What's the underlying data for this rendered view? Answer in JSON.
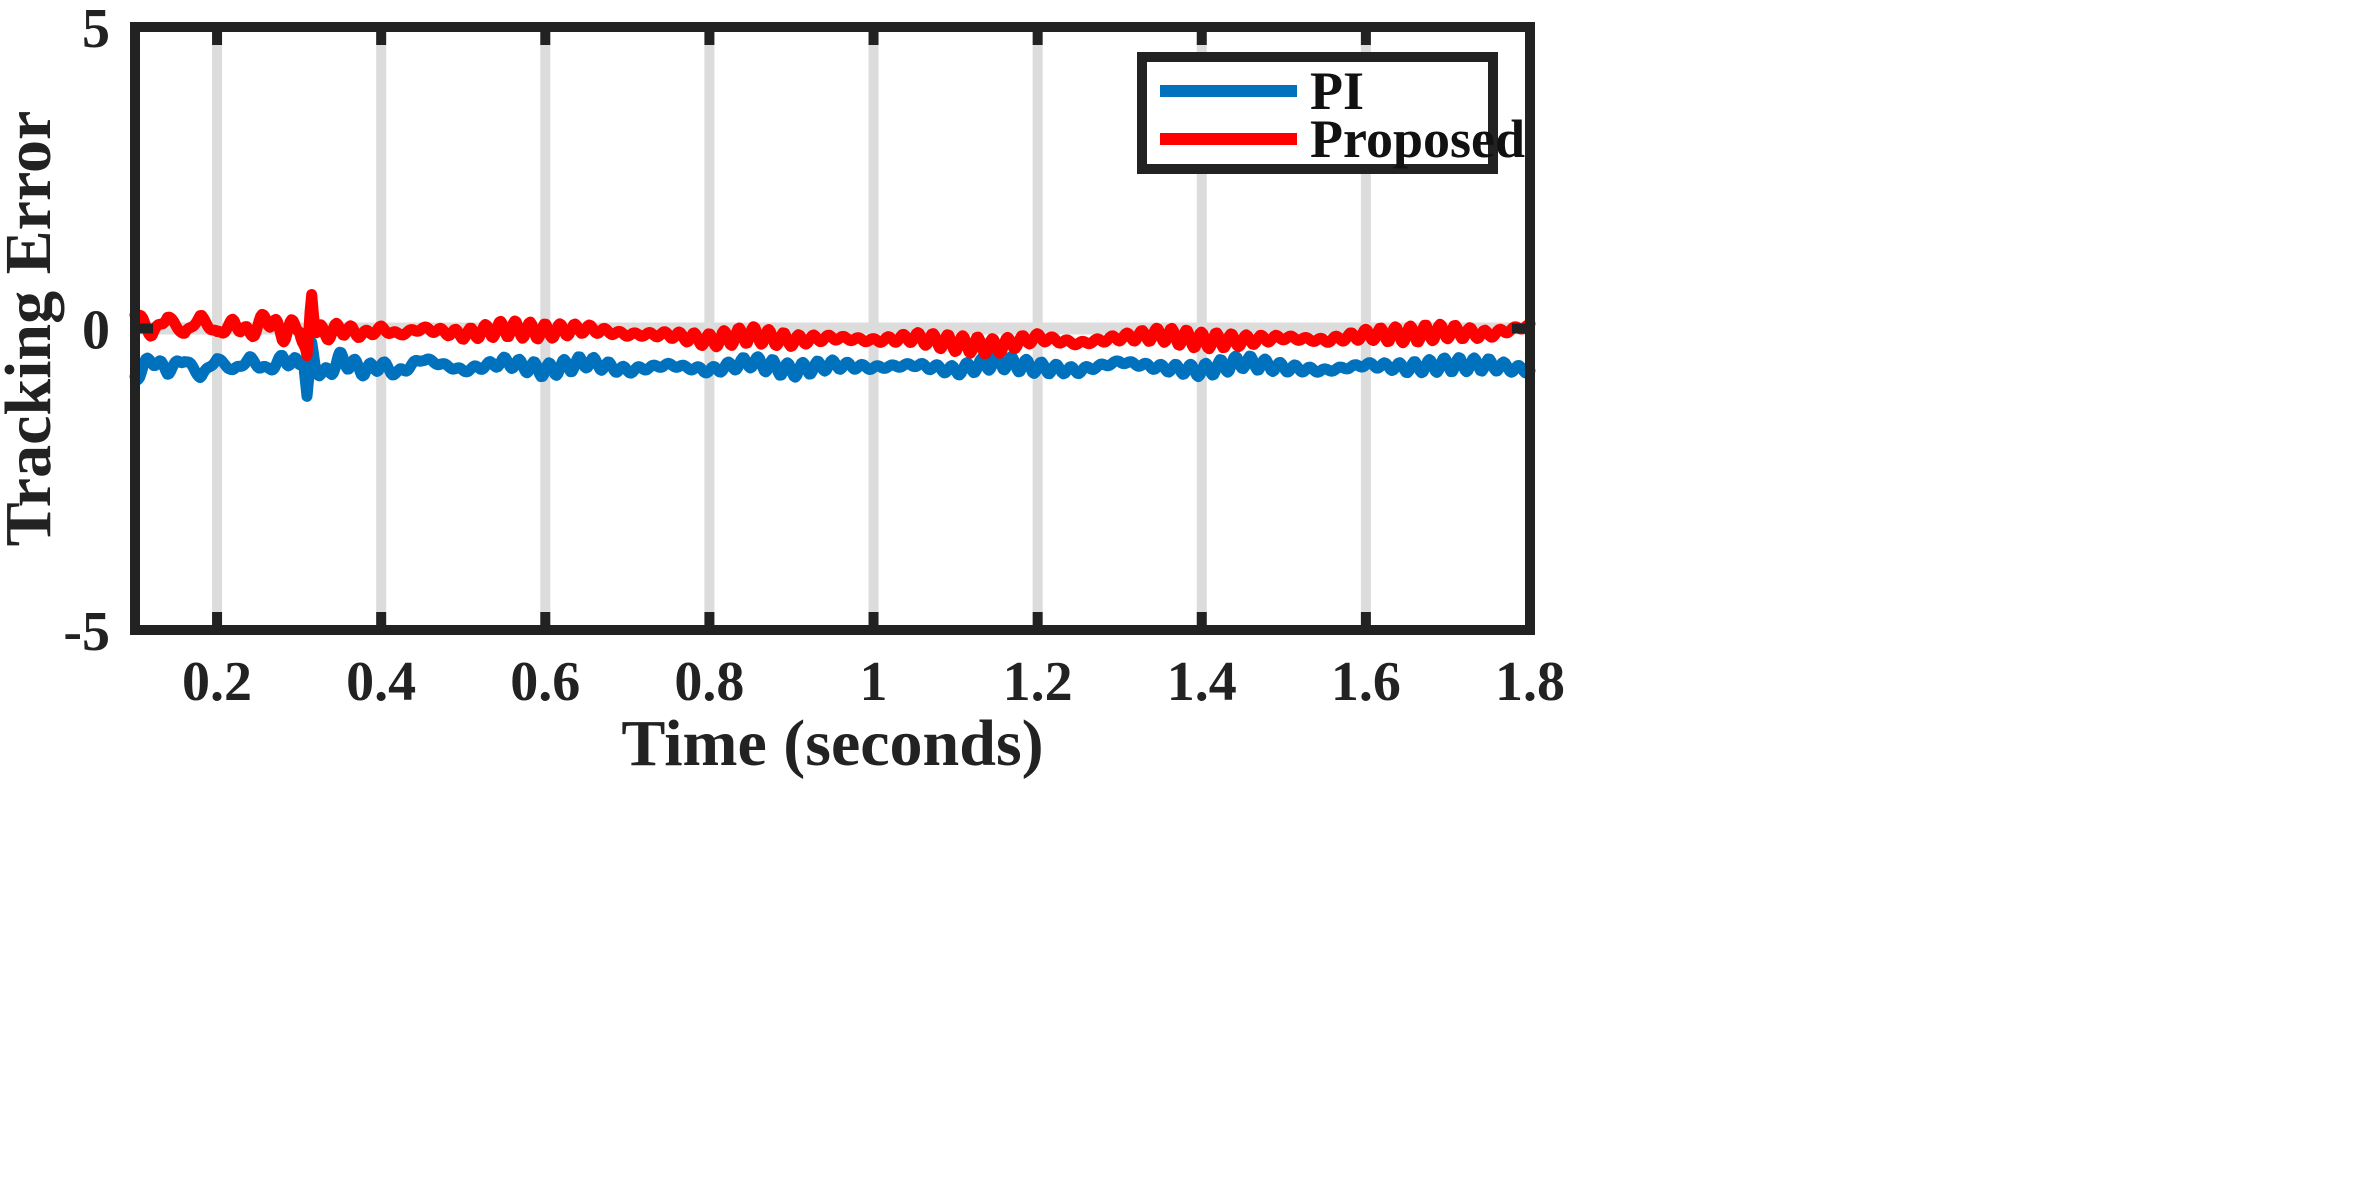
{
  "chart_data": {
    "type": "line",
    "title": "",
    "xlabel": "Time (seconds)",
    "ylabel": "Tracking Error",
    "xlim": [
      0.1,
      1.8
    ],
    "ylim": [
      -5,
      5
    ],
    "xticks": [
      0.2,
      0.4,
      0.6,
      0.8,
      1,
      1.2,
      1.4,
      1.6,
      1.8
    ],
    "xtick_labels": [
      "0.2",
      "0.4",
      "0.6",
      "0.8",
      "1",
      "1.2",
      "1.4",
      "1.6",
      "1.8"
    ],
    "yticks": [
      -5,
      0,
      5
    ],
    "ytick_labels": [
      "-5",
      "0",
      "5"
    ],
    "grid": "vertical",
    "legend_position": "top-right",
    "series": [
      {
        "name": "PI",
        "color": "#0072BD",
        "x": [
          0.1,
          0.12,
          0.14,
          0.16,
          0.18,
          0.2,
          0.22,
          0.24,
          0.26,
          0.28,
          0.3,
          0.305,
          0.31,
          0.315,
          0.32,
          0.33,
          0.35,
          0.38,
          0.4,
          0.42,
          0.45,
          0.5,
          0.55,
          0.6,
          0.65,
          0.7,
          0.75,
          0.8,
          0.85,
          0.9,
          0.95,
          1.0,
          1.05,
          1.1,
          1.15,
          1.2,
          1.25,
          1.3,
          1.35,
          1.4,
          1.45,
          1.5,
          1.55,
          1.6,
          1.65,
          1.7,
          1.75,
          1.8
        ],
        "values": [
          -0.8,
          -0.5,
          -0.7,
          -0.5,
          -0.8,
          -0.5,
          -0.7,
          -0.5,
          -0.7,
          -0.5,
          -0.6,
          -0.4,
          -1.2,
          -0.3,
          -0.6,
          -0.8,
          -0.5,
          -0.7,
          -0.6,
          -0.75,
          -0.5,
          -0.7,
          -0.55,
          -0.7,
          -0.55,
          -0.7,
          -0.6,
          -0.7,
          -0.55,
          -0.7,
          -0.6,
          -0.65,
          -0.6,
          -0.7,
          -0.55,
          -0.65,
          -0.7,
          -0.55,
          -0.65,
          -0.7,
          -0.55,
          -0.65,
          -0.7,
          -0.6,
          -0.65,
          -0.6,
          -0.6,
          -0.7
        ]
      },
      {
        "name": "Proposed",
        "color": "#FF0000",
        "x": [
          0.1,
          0.12,
          0.14,
          0.16,
          0.18,
          0.2,
          0.22,
          0.24,
          0.26,
          0.28,
          0.3,
          0.305,
          0.31,
          0.315,
          0.32,
          0.33,
          0.35,
          0.38,
          0.4,
          0.42,
          0.45,
          0.5,
          0.55,
          0.6,
          0.65,
          0.7,
          0.75,
          0.8,
          0.85,
          0.9,
          0.95,
          1.0,
          1.05,
          1.1,
          1.15,
          1.2,
          1.25,
          1.3,
          1.35,
          1.4,
          1.45,
          1.5,
          1.55,
          1.6,
          1.65,
          1.7,
          1.75,
          1.8
        ],
        "values": [
          0.3,
          -0.1,
          0.2,
          -0.1,
          0.2,
          -0.1,
          0.1,
          -0.1,
          0.2,
          -0.1,
          0.1,
          -0.3,
          -0.6,
          0.7,
          0.0,
          -0.1,
          0.0,
          -0.1,
          0.0,
          -0.1,
          0.0,
          -0.1,
          0.0,
          -0.05,
          0.0,
          -0.1,
          -0.1,
          -0.2,
          -0.1,
          -0.2,
          -0.15,
          -0.2,
          -0.15,
          -0.25,
          -0.3,
          -0.15,
          -0.25,
          -0.15,
          -0.1,
          -0.2,
          -0.2,
          -0.15,
          -0.2,
          -0.1,
          -0.1,
          -0.05,
          -0.1,
          0.05
        ]
      }
    ]
  }
}
